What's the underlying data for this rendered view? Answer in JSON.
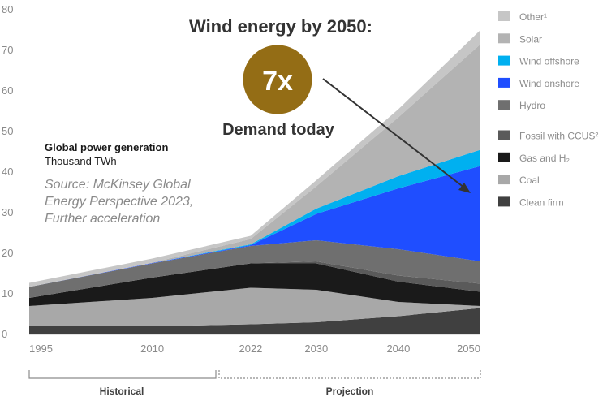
{
  "chart_data": {
    "type": "area",
    "stacked": true,
    "title": "Global power generation",
    "unit": "Thousand TWh",
    "source": [
      "Source: McKinsey Global",
      "Energy Perspective 2023,",
      "Further acceleration"
    ],
    "annotation": {
      "headline": "Wind energy by 2050:",
      "badge": "7x",
      "caption": "Demand today"
    },
    "periods": [
      {
        "label": "Historical",
        "from": 1995,
        "to": 2022
      },
      {
        "label": "Projection",
        "from": 2022,
        "to": 2050
      }
    ],
    "x": [
      1995,
      2010,
      2022,
      2030,
      2040,
      2050
    ],
    "x_tick_labels": [
      "1995",
      "2010",
      "2022",
      "2030",
      "2040",
      "2050"
    ],
    "ylim": [
      0,
      80
    ],
    "y_ticks": [
      0,
      10,
      20,
      30,
      40,
      50,
      60,
      70,
      80
    ],
    "grid": false,
    "legend_position": "right",
    "legend_items": [
      {
        "label": "Other¹",
        "color": "#c6c6c6"
      },
      {
        "label": "Solar",
        "color": "#b3b3b3"
      },
      {
        "label": "Wind offshore",
        "color": "#00b0f0"
      },
      {
        "label": "Wind onshore",
        "color": "#1f4eff"
      },
      {
        "label": "Hydro",
        "color": "#6f6f6f"
      },
      {
        "label": "Fossil with CCUS²",
        "color": "#5a5a5a"
      },
      {
        "label": "Gas and H₂",
        "color": "#1a1a1a"
      },
      {
        "label": "Coal",
        "color": "#a8a8a8"
      },
      {
        "label": "Clean firm",
        "color": "#404040"
      }
    ],
    "series": [
      {
        "name": "Clean firm",
        "color": "#404040",
        "values": [
          2.0,
          2.0,
          2.5,
          3.0,
          4.5,
          6.5
        ]
      },
      {
        "name": "Coal",
        "color": "#a8a8a8",
        "values": [
          5.0,
          7.0,
          9.0,
          8.0,
          3.5,
          0.5
        ]
      },
      {
        "name": "Gas and H₂",
        "color": "#1a1a1a",
        "values": [
          2.0,
          5.0,
          6.0,
          6.5,
          5.0,
          3.5
        ]
      },
      {
        "name": "Fossil with CCUS²",
        "color": "#5a5a5a",
        "values": [
          0.0,
          0.0,
          0.0,
          0.5,
          1.5,
          2.0
        ]
      },
      {
        "name": "Hydro",
        "color": "#6f6f6f",
        "values": [
          2.7,
          3.5,
          4.3,
          5.2,
          6.5,
          5.5
        ]
      },
      {
        "name": "Wind onshore",
        "color": "#1f4eff",
        "values": [
          0.0,
          0.1,
          0.2,
          6.5,
          15.0,
          23.5
        ]
      },
      {
        "name": "Wind offshore",
        "color": "#00b0f0",
        "values": [
          0.0,
          0.0,
          0.2,
          1.3,
          3.0,
          4.0
        ]
      },
      {
        "name": "Solar",
        "color": "#b3b3b3",
        "values": [
          0.0,
          0.1,
          1.3,
          5.5,
          14.5,
          26.0
        ]
      },
      {
        "name": "Other¹",
        "color": "#c6c6c6",
        "values": [
          1.0,
          1.0,
          0.8,
          1.5,
          2.0,
          3.5
        ]
      }
    ]
  }
}
